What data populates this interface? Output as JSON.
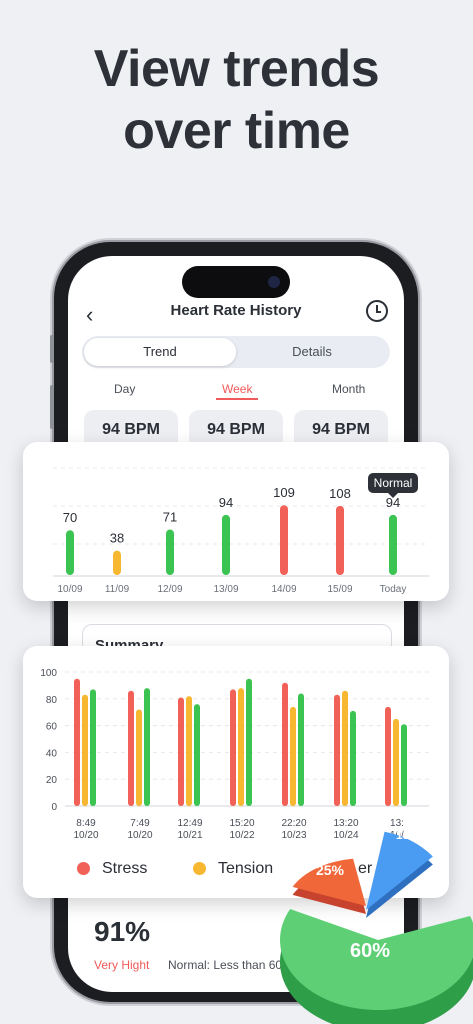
{
  "headline": {
    "line1": "View trends",
    "line2": "over time"
  },
  "nav": {
    "back": "‹",
    "title": "Heart Rate History",
    "history_icon": "clock-icon"
  },
  "tabs": {
    "trend": "Trend",
    "details": "Details"
  },
  "periods": {
    "day": "Day",
    "week": "Week",
    "month": "Month"
  },
  "bpm_cards": [
    "94 BPM",
    "94 BPM",
    "94 BPM"
  ],
  "summary": {
    "title": "Summary",
    "percent": "91%",
    "level": "Very Hight",
    "note": "Normal: Less than 60"
  },
  "colors": {
    "red": "#f26157",
    "green": "#3cc452",
    "yellow": "#f7b731",
    "blue": "#4a9cf2"
  },
  "chart_data": [
    {
      "type": "bar",
      "categories": [
        "10/09",
        "11/09",
        "12/09",
        "13/09",
        "14/09",
        "15/09",
        "Today"
      ],
      "values": [
        70,
        38,
        71,
        94,
        109,
        108,
        94
      ],
      "colors": [
        "green",
        "yellow",
        "green",
        "green",
        "red",
        "red",
        "green"
      ],
      "tooltip": {
        "text": "Normal",
        "category": "Today"
      },
      "title": "",
      "xlabel": "",
      "ylabel": ""
    },
    {
      "type": "bar",
      "categories": [
        [
          "8:49",
          "10/20"
        ],
        [
          "7:49",
          "10/20"
        ],
        [
          "12:49",
          "10/21"
        ],
        [
          "15:20",
          "10/22"
        ],
        [
          "22:20",
          "10/23"
        ],
        [
          "13:20",
          "10/24"
        ],
        [
          "13:",
          "10/"
        ]
      ],
      "yticks": [
        0,
        20,
        40,
        60,
        80,
        100
      ],
      "ylim": [
        0,
        100
      ],
      "series": [
        {
          "name": "Stress",
          "color": "red",
          "values": [
            95,
            86,
            81,
            87,
            92,
            83,
            74
          ]
        },
        {
          "name": "Tension",
          "color": "yellow",
          "values": [
            83,
            72,
            82,
            88,
            74,
            86,
            65
          ]
        },
        {
          "name": "",
          "color": "green",
          "values": [
            87,
            88,
            76,
            95,
            84,
            71,
            61
          ]
        }
      ],
      "legend_partial_label": "er"
    },
    {
      "type": "pie",
      "slices": [
        {
          "label": "60%",
          "value": 60,
          "color": "green"
        },
        {
          "label": "25%",
          "value": 25,
          "color": "red"
        },
        {
          "label": "15%",
          "value": 15,
          "color": "blue"
        }
      ]
    }
  ]
}
